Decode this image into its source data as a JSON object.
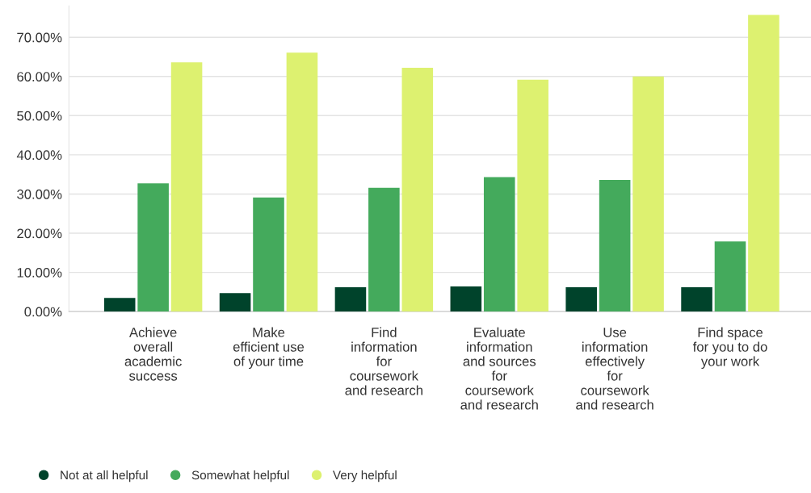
{
  "chart_data": {
    "type": "bar",
    "categories": [
      "Achieve overall academic success",
      "Make efficient use of your time",
      "Find information for coursework and research",
      "Evaluate information and sources for coursework and research",
      "Use information effectively for coursework and research",
      "Find space for you to do your work"
    ],
    "series": [
      {
        "name": "Not at all helpful",
        "color": "#00432b",
        "values": [
          3.5,
          4.7,
          6.2,
          6.4,
          6.2,
          6.2
        ]
      },
      {
        "name": "Somewhat helpful",
        "color": "#44aa5c",
        "values": [
          32.7,
          29.1,
          31.6,
          34.3,
          33.6,
          17.9
        ]
      },
      {
        "name": "Very helpful",
        "color": "#ddf170",
        "values": [
          63.6,
          66.1,
          62.2,
          59.2,
          60.0,
          75.7
        ]
      }
    ],
    "ylim": [
      0,
      78
    ],
    "yticks": [
      {
        "value": 0,
        "label": "0.00%"
      },
      {
        "value": 10,
        "label": "10.00%"
      },
      {
        "value": 20,
        "label": "20.00%"
      },
      {
        "value": 30,
        "label": "30.00%"
      },
      {
        "value": 40,
        "label": "40.00%"
      },
      {
        "value": 50,
        "label": "50.00%"
      },
      {
        "value": 60,
        "label": "60.00%"
      },
      {
        "value": 70,
        "label": "70.00%"
      }
    ],
    "grid": "y",
    "legend": "bottom left"
  }
}
